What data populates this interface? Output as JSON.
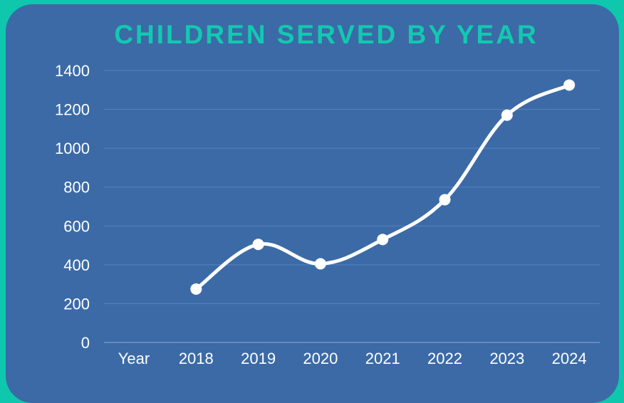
{
  "chart_data": {
    "type": "line",
    "title": "CHILDREN SERVED BY YEAR",
    "xlabel": "",
    "ylabel": "",
    "x_axis_label": "Year",
    "categories": [
      "2018",
      "2019",
      "2020",
      "2021",
      "2022",
      "2023",
      "2024"
    ],
    "series": [
      {
        "values": [
          275,
          505,
          405,
          530,
          735,
          1170,
          1325
        ]
      }
    ],
    "yticks": [
      "0",
      "200",
      "400",
      "600",
      "800",
      "1000",
      "1200",
      "1400"
    ],
    "ylim": [
      0,
      1400
    ],
    "grid": true,
    "colors": {
      "background": "#3b6aa7",
      "frame": "#0fc7ad",
      "title": "#12c9b0",
      "line": "#ffffff",
      "grid": "#5a83ba"
    }
  }
}
